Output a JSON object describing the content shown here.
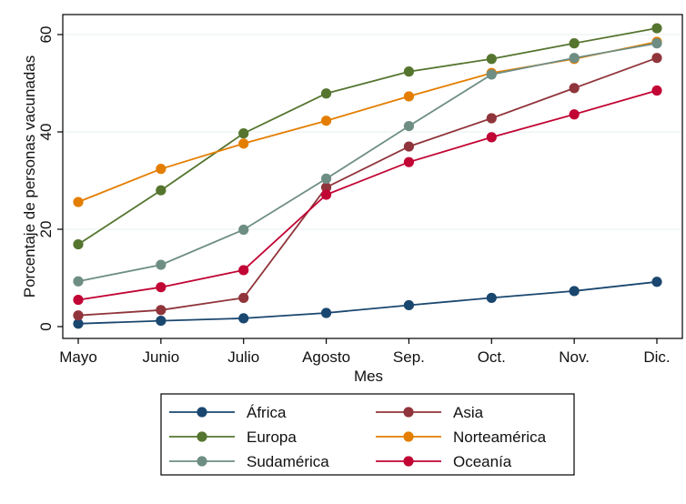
{
  "chart_data": {
    "type": "line",
    "title": "",
    "xlabel": "Mes",
    "ylabel": "Porcentaje de personas vacunadas",
    "categories": [
      "Mayo",
      "Junio",
      "Julio",
      "Agosto",
      "Sep.",
      "Oct.",
      "Nov.",
      "Dic."
    ],
    "yticks": [
      0,
      20,
      40,
      60
    ],
    "ylim": [
      -2,
      64
    ],
    "grid": true,
    "legend_position": "bottom",
    "series": [
      {
        "name": "África",
        "color": "#1a476f",
        "values": [
          0.6,
          1.2,
          1.7,
          2.8,
          4.4,
          5.9,
          7.3,
          9.2
        ]
      },
      {
        "name": "Asia",
        "color": "#90353b",
        "values": [
          2.3,
          3.4,
          5.9,
          28.6,
          37.0,
          42.8,
          49.0,
          55.2
        ]
      },
      {
        "name": "Europa",
        "color": "#55752f",
        "values": [
          16.9,
          28.0,
          39.7,
          47.9,
          52.4,
          55.0,
          58.2,
          61.3
        ]
      },
      {
        "name": "Norteamérica",
        "color": "#e37e00",
        "values": [
          25.6,
          32.4,
          37.6,
          42.3,
          47.3,
          52.1,
          55.0,
          58.5
        ]
      },
      {
        "name": "Sudamérica",
        "color": "#6e8e84",
        "values": [
          9.3,
          12.7,
          19.9,
          30.4,
          41.2,
          51.8,
          55.2,
          58.2
        ]
      },
      {
        "name": "Oceanía",
        "color": "#c10534",
        "values": [
          5.5,
          8.1,
          11.6,
          27.1,
          33.8,
          38.9,
          43.6,
          48.5
        ]
      }
    ]
  }
}
